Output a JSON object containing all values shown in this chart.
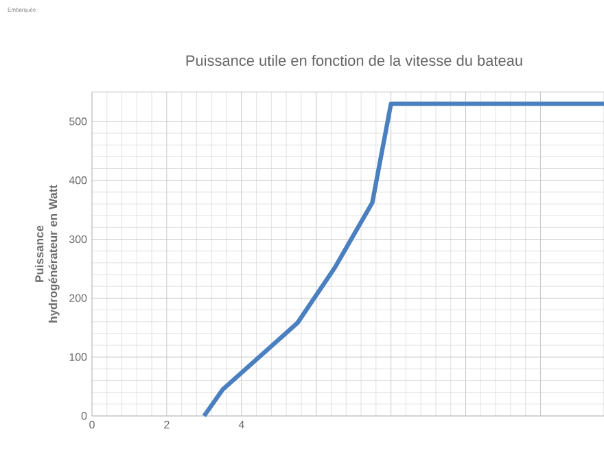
{
  "chart_data": {
    "type": "line",
    "title": "Puissance utile en fonction de la vitesse du bateau",
    "ylabel": "Puissance hydrogénérateur en Watt",
    "annotations": [
      "Embarquée"
    ],
    "x": [
      3.0,
      3.5,
      5.5,
      6.5,
      7.5,
      8.0,
      13.7
    ],
    "series": [
      {
        "color": "#4a7fc0",
        "values": [
          0,
          45,
          158,
          252,
          362,
          530,
          530
        ]
      }
    ],
    "xlim": [
      0,
      13.7
    ],
    "ylim": [
      0,
      550
    ],
    "xticks": [
      0,
      2,
      4,
      {
        "value": 6,
        "label": null
      },
      {
        "value": 8,
        "label": null
      },
      {
        "value": 10,
        "label": null
      },
      {
        "value": 12,
        "label": null
      }
    ],
    "yticks": [
      0,
      100,
      200,
      300,
      400,
      500
    ],
    "grid": true,
    "marker": "none",
    "line_style": "solid"
  }
}
